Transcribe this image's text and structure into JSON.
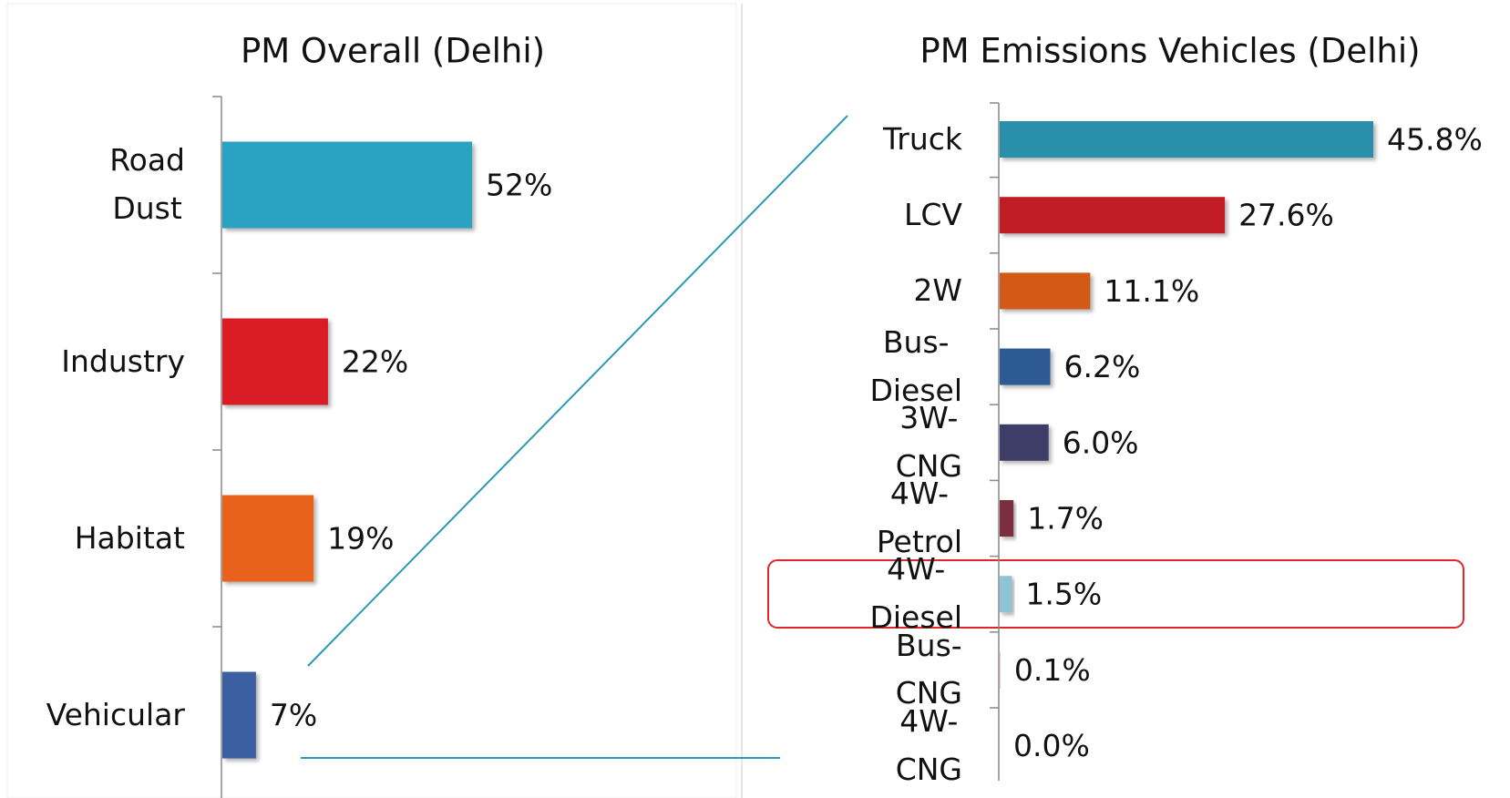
{
  "chart_data": [
    {
      "type": "bar",
      "orientation": "horizontal",
      "title": "PM Overall (Delhi)",
      "categories": [
        "Road Dust",
        "Industry",
        "Habitat",
        "Vehicular"
      ],
      "values": [
        52,
        22,
        19,
        7
      ],
      "value_labels": [
        "52%",
        "22%",
        "19%",
        "7%"
      ],
      "colors": [
        "#2ba3c2",
        "#d91f26",
        "#e8621f",
        "#3a5fa0"
      ]
    },
    {
      "type": "bar",
      "orientation": "horizontal",
      "title": "PM Emissions Vehicles (Delhi)",
      "categories": [
        "Truck",
        "LCV",
        "2W",
        "Bus-Diesel",
        "3W-CNG",
        "4W-Petrol",
        "4W-Diesel",
        "Bus-CNG",
        "4W-CNG"
      ],
      "values": [
        45.8,
        27.6,
        11.1,
        6.2,
        6.0,
        1.7,
        1.5,
        0.1,
        0.0
      ],
      "value_labels": [
        "45.8%",
        "27.6%",
        "11.1%",
        "6.2%",
        "6.0%",
        "1.7%",
        "1.5%",
        "0.1%",
        "0.0%"
      ],
      "colors": [
        "#2a8fab",
        "#c11b25",
        "#d35a16",
        "#2f5a93",
        "#3c3c68",
        "#7b2f3f",
        "#8fc3d6",
        "#e8c8cc",
        "#cccccc"
      ]
    }
  ]
}
